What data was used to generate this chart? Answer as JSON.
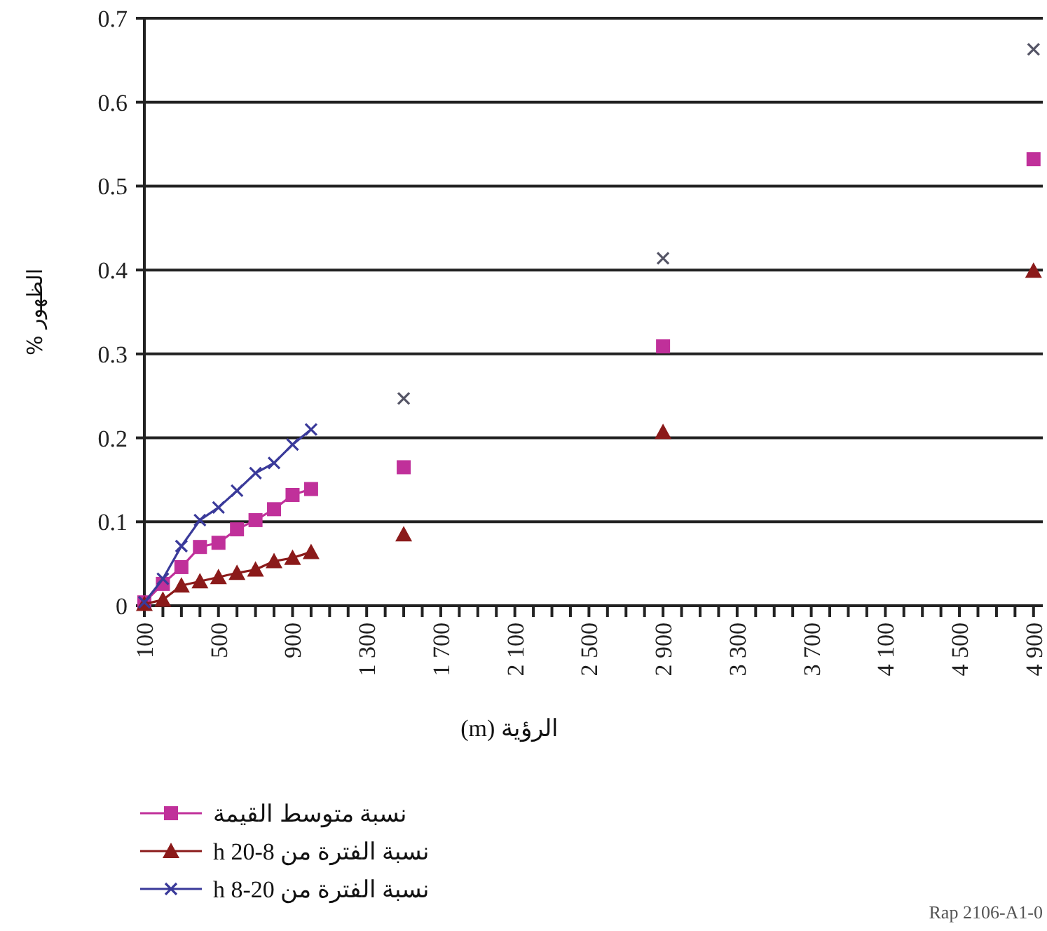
{
  "chart_data": {
    "type": "line",
    "xlabel": "الرؤية (m)",
    "ylabel": "الظهور %",
    "xlim": [
      100,
      4950
    ],
    "ylim": [
      0,
      0.7
    ],
    "xticks": [
      100,
      {
        "value": 200,
        "label": null
      },
      {
        "value": 300,
        "label": null
      },
      {
        "value": 400,
        "label": null
      },
      500,
      {
        "value": 600,
        "label": null
      },
      {
        "value": 700,
        "label": null
      },
      {
        "value": 800,
        "label": null
      },
      900,
      {
        "value": 1000,
        "label": null
      },
      {
        "value": 1100,
        "label": null
      },
      {
        "value": 1200,
        "label": null
      },
      {
        "value": 1300,
        "label": "1 300"
      },
      {
        "value": 1400,
        "label": null
      },
      {
        "value": 1500,
        "label": null
      },
      {
        "value": 1600,
        "label": null
      },
      {
        "value": 1700,
        "label": "1 700"
      },
      {
        "value": 1800,
        "label": null
      },
      {
        "value": 1900,
        "label": null
      },
      {
        "value": 2000,
        "label": null
      },
      {
        "value": 2100,
        "label": "2 100"
      },
      {
        "value": 2200,
        "label": null
      },
      {
        "value": 2300,
        "label": null
      },
      {
        "value": 2400,
        "label": null
      },
      {
        "value": 2500,
        "label": "2 500"
      },
      {
        "value": 2600,
        "label": null
      },
      {
        "value": 2700,
        "label": null
      },
      {
        "value": 2800,
        "label": null
      },
      {
        "value": 2900,
        "label": "2 900"
      },
      {
        "value": 3000,
        "label": null
      },
      {
        "value": 3100,
        "label": null
      },
      {
        "value": 3200,
        "label": null
      },
      {
        "value": 3300,
        "label": "3 300"
      },
      {
        "value": 3400,
        "label": null
      },
      {
        "value": 3500,
        "label": null
      },
      {
        "value": 3600,
        "label": null
      },
      {
        "value": 3700,
        "label": "3 700"
      },
      {
        "value": 3800,
        "label": null
      },
      {
        "value": 3900,
        "label": null
      },
      {
        "value": 4000,
        "label": null
      },
      {
        "value": 4100,
        "label": "4 100"
      },
      {
        "value": 4200,
        "label": null
      },
      {
        "value": 4300,
        "label": null
      },
      {
        "value": 4400,
        "label": null
      },
      {
        "value": 4500,
        "label": "4 500"
      },
      {
        "value": 4600,
        "label": null
      },
      {
        "value": 4700,
        "label": null
      },
      {
        "value": 4800,
        "label": null
      },
      {
        "value": 4900,
        "label": "4 900"
      }
    ],
    "yticks": [
      0,
      0.1,
      0.2,
      0.3,
      0.4,
      0.5,
      0.6,
      0.7
    ],
    "grid": "y",
    "legend": "bottom",
    "series": [
      {
        "name": "نسبة متوسط القيمة",
        "color": "#c0309a",
        "marker": "square",
        "x": [
          100,
          200,
          300,
          400,
          500,
          600,
          700,
          800,
          900,
          1000
        ],
        "values": [
          0.004,
          0.026,
          0.046,
          0.07,
          0.075,
          0.091,
          0.102,
          0.115,
          0.132,
          0.139
        ]
      },
      {
        "name": "نسبة الفترة من 8-20 h",
        "color": "#8b1a1a",
        "marker": "triangle",
        "x": [
          100,
          200,
          300,
          400,
          500,
          600,
          700,
          800,
          900,
          1000
        ],
        "values": [
          0.002,
          0.007,
          0.024,
          0.029,
          0.034,
          0.039,
          0.043,
          0.053,
          0.057,
          0.064
        ]
      },
      {
        "name": "نسبة الفترة من 20-8 h",
        "color": "#3a3a9a",
        "marker": "cross",
        "x": [
          100,
          200,
          300,
          400,
          500,
          600,
          700,
          800,
          900,
          1000
        ],
        "values": [
          0.004,
          0.032,
          0.071,
          0.102,
          0.117,
          0.137,
          0.158,
          0.17,
          0.192,
          0.21
        ]
      },
      {
        "type": "scatter",
        "color": "#c0309a",
        "marker": "square",
        "x": [
          1500,
          2900,
          4900
        ],
        "values": [
          0.165,
          0.309,
          0.532
        ]
      },
      {
        "type": "scatter",
        "color": "#8b1a1a",
        "marker": "triangle",
        "x": [
          1500,
          2900,
          4900
        ],
        "values": [
          0.085,
          0.207,
          0.399
        ]
      },
      {
        "type": "scatter",
        "color": "#555566",
        "marker": "cross",
        "x": [
          1500,
          2900,
          4900
        ],
        "values": [
          0.247,
          0.414,
          0.663
        ]
      }
    ],
    "annotations": [
      "Rap 2106-A1-0"
    ]
  }
}
